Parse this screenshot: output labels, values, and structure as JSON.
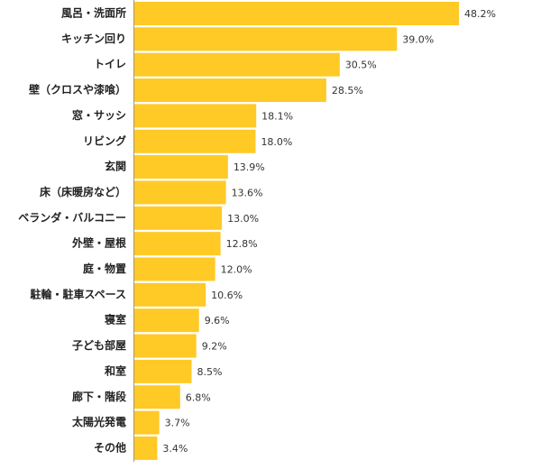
{
  "chart_data": {
    "type": "hbar",
    "categories": [
      "風呂・洗面所",
      "キッチン回り",
      "トイレ",
      "壁（クロスや漆喰）",
      "窓・サッシ",
      "リビング",
      "玄関",
      "床（床暖房など）",
      "ベランダ・バルコニー",
      "外壁・屋根",
      "庭・物置",
      "駐輪・駐車スペース",
      "寝室",
      "子ども部屋",
      "和室",
      "廊下・階段",
      "太陽光発電",
      "その他"
    ],
    "values": [
      48.2,
      39.0,
      30.5,
      28.5,
      18.1,
      18.0,
      13.9,
      13.6,
      13.0,
      12.8,
      12.0,
      10.6,
      9.6,
      9.2,
      8.5,
      6.8,
      3.7,
      3.4
    ],
    "value_labels": [
      "48.2%",
      "39.0%",
      "30.5%",
      "28.5%",
      "18.1%",
      "18.0%",
      "13.9%",
      "13.6%",
      "13.0%",
      "12.8%",
      "12.0%",
      "10.6%",
      "9.6%",
      "9.2%",
      "8.5%",
      "6.8%",
      "3.7%",
      "3.4%"
    ],
    "color": "#ffc926"
  }
}
